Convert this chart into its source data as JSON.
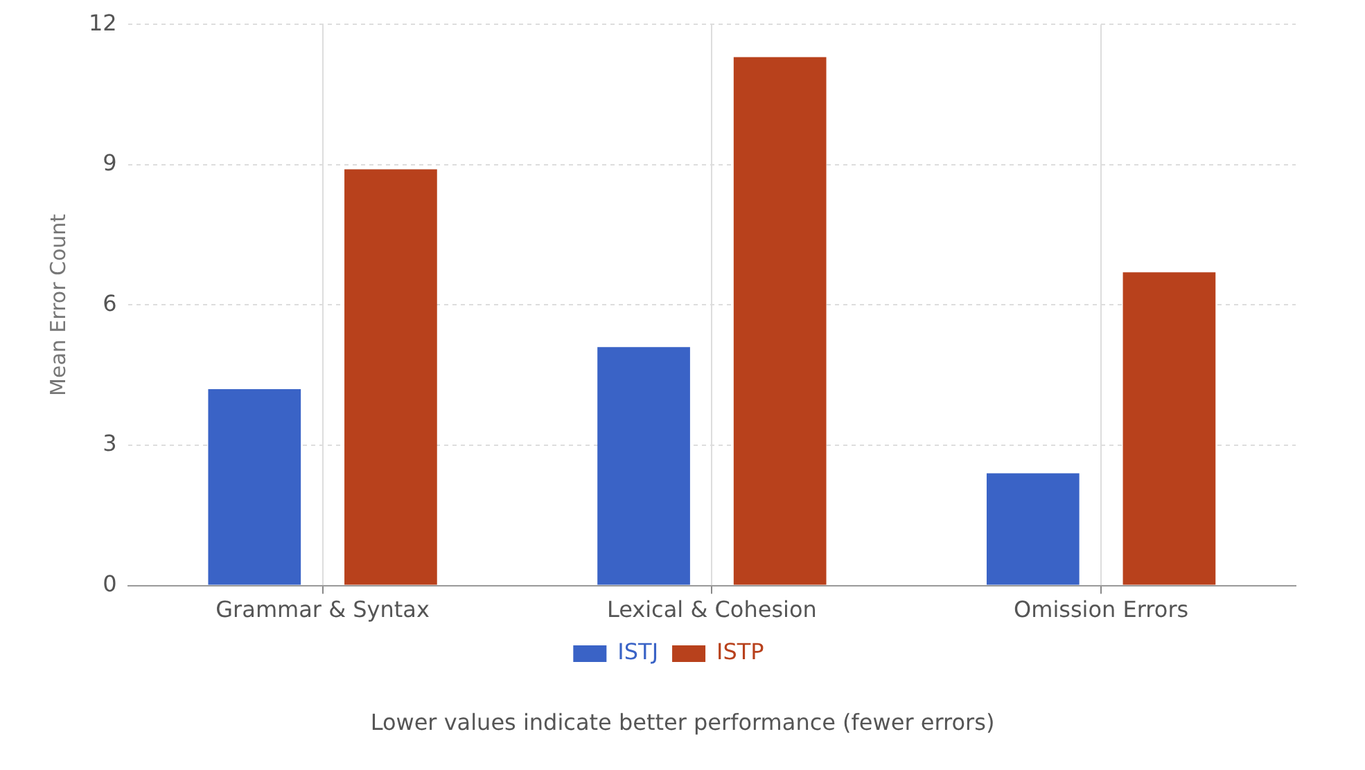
{
  "chart_data": {
    "type": "bar",
    "ylabel": "Mean Error Count",
    "categories": [
      "Grammar & Syntax",
      "Lexical & Cohesion",
      "Omission Errors"
    ],
    "series": [
      {
        "name": "ISTJ",
        "color": "#3a63c6",
        "values": [
          4.2,
          5.1,
          2.4
        ]
      },
      {
        "name": "ISTP",
        "color": "#b8411c",
        "values": [
          8.9,
          11.3,
          6.7
        ]
      }
    ],
    "ylim": [
      0,
      12
    ],
    "yticks": [
      0,
      3,
      6,
      9,
      12
    ],
    "grid": true,
    "legend": "bottom",
    "annotations": [
      "Lower values indicate better performance (fewer errors)"
    ]
  }
}
